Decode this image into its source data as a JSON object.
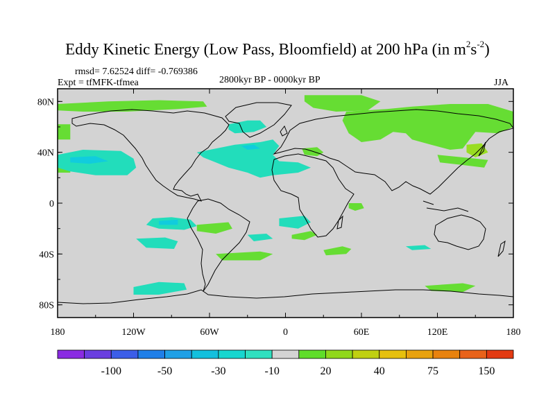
{
  "chart_data": {
    "type": "heatmap",
    "title_main": "Eddy Kinetic Energy (Low Pass, Bloomfield) at 200 hPa (in m",
    "title_sup1": "2",
    "title_s": "s",
    "title_sup2": "-2",
    "title_close": ")",
    "stats": "rmsd= 7.62524 diff= -0.769386",
    "experiment": "Expt = tfMFK-tfmea",
    "period": "2800kyr BP - 0000kyr BP",
    "season": "JJA",
    "x_axis": {
      "range": [
        -180,
        180
      ],
      "ticks": [
        -180,
        -120,
        -60,
        0,
        60,
        120,
        180
      ],
      "tick_labels": [
        "180",
        "120W",
        "60W",
        "0",
        "60E",
        "120E",
        "180"
      ]
    },
    "y_axis": {
      "range": [
        -90,
        90
      ],
      "ticks": [
        80,
        40,
        0,
        -40,
        -80
      ],
      "tick_labels": [
        "80N",
        "40N",
        "0",
        "40S",
        "80S"
      ]
    },
    "colorbar": {
      "colors": [
        "#8a2be2",
        "#6a3ee0",
        "#3c5ee8",
        "#1f7fe8",
        "#1fa0e6",
        "#13c0dd",
        "#17d6cf",
        "#30e0c0",
        "#d3d3d3",
        "#5fdd2a",
        "#90d81c",
        "#c0d012",
        "#e6c00e",
        "#e8a20e",
        "#e8820e",
        "#e8621a",
        "#e33a12"
      ],
      "labels": [
        "-100",
        "-50",
        "-30",
        "-10",
        "20",
        "40",
        "75",
        "150"
      ]
    },
    "regions": [
      {
        "category": "positive",
        "color": "#66dd33",
        "polygon": [
          [
            -180,
            78
          ],
          [
            -140,
            80
          ],
          [
            -100,
            81
          ],
          [
            -65,
            80
          ],
          [
            -62,
            76
          ],
          [
            -85,
            74
          ],
          [
            -125,
            72
          ],
          [
            -160,
            72
          ],
          [
            -180,
            73
          ]
        ]
      },
      {
        "category": "positive",
        "color": "#66dd33",
        "polygon": [
          [
            15,
            85
          ],
          [
            60,
            85
          ],
          [
            75,
            80
          ],
          [
            65,
            73
          ],
          [
            40,
            72
          ],
          [
            22,
            75
          ],
          [
            15,
            80
          ]
        ]
      },
      {
        "category": "positive",
        "color": "#66dd33",
        "polygon": [
          [
            48,
            72
          ],
          [
            80,
            74
          ],
          [
            100,
            76
          ],
          [
            130,
            78
          ],
          [
            160,
            78
          ],
          [
            180,
            72
          ],
          [
            180,
            60
          ],
          [
            168,
            55
          ],
          [
            150,
            56
          ],
          [
            140,
            43
          ],
          [
            130,
            42
          ],
          [
            115,
            46
          ],
          [
            100,
            50
          ],
          [
            95,
            55
          ],
          [
            85,
            56
          ],
          [
            75,
            50
          ],
          [
            60,
            48
          ],
          [
            50,
            55
          ],
          [
            45,
            65
          ]
        ]
      },
      {
        "category": "positive",
        "color": "#66dd33",
        "polygon": [
          [
            120,
            38
          ],
          [
            150,
            35
          ],
          [
            160,
            34
          ],
          [
            157,
            28
          ],
          [
            140,
            30
          ],
          [
            122,
            32
          ]
        ]
      },
      {
        "category": "positive",
        "color": "#66dd33",
        "polygon": [
          [
            13,
            43
          ],
          [
            25,
            44
          ],
          [
            30,
            40
          ],
          [
            25,
            37
          ],
          [
            15,
            38
          ]
        ]
      },
      {
        "category": "positive",
        "color": "#66dd33",
        "polygon": [
          [
            -180,
            62
          ],
          [
            -170,
            62
          ],
          [
            -170,
            50
          ],
          [
            -180,
            50
          ]
        ]
      },
      {
        "category": "positive",
        "color": "#66dd33",
        "polygon": [
          [
            -70,
            -17
          ],
          [
            -45,
            -15
          ],
          [
            -42,
            -20
          ],
          [
            -55,
            -24
          ],
          [
            -70,
            -22
          ]
        ]
      },
      {
        "category": "positive",
        "color": "#66dd33",
        "polygon": [
          [
            -55,
            -40
          ],
          [
            -20,
            -38
          ],
          [
            -10,
            -40
          ],
          [
            -20,
            -45
          ],
          [
            -50,
            -45
          ]
        ]
      },
      {
        "category": "positive",
        "color": "#66dd33",
        "polygon": [
          [
            5,
            -25
          ],
          [
            20,
            -22
          ],
          [
            25,
            -25
          ],
          [
            15,
            -29
          ],
          [
            5,
            -28
          ]
        ]
      },
      {
        "category": "positive",
        "color": "#66dd33",
        "polygon": [
          [
            50,
            0
          ],
          [
            60,
            0
          ],
          [
            62,
            -4
          ],
          [
            55,
            -6
          ],
          [
            50,
            -4
          ]
        ]
      },
      {
        "category": "positive",
        "color": "#66dd33",
        "polygon": [
          [
            30,
            -37
          ],
          [
            45,
            -34
          ],
          [
            52,
            -36
          ],
          [
            48,
            -40
          ],
          [
            32,
            -41
          ]
        ]
      },
      {
        "category": "positive",
        "color": "#66dd33",
        "polygon": [
          [
            110,
            -65
          ],
          [
            140,
            -63
          ],
          [
            150,
            -65
          ],
          [
            140,
            -70
          ],
          [
            115,
            -69
          ]
        ]
      },
      {
        "category": "positive",
        "color": "#66dd33",
        "polygon": [
          [
            -180,
            28
          ],
          [
            -170,
            30
          ],
          [
            -170,
            24
          ],
          [
            -180,
            24
          ]
        ]
      },
      {
        "category": "positive_strong",
        "color": "#99dd22",
        "polygon": [
          [
            143,
            46
          ],
          [
            155,
            47
          ],
          [
            160,
            40
          ],
          [
            150,
            36
          ],
          [
            143,
            40
          ]
        ]
      },
      {
        "category": "negative",
        "color": "#22ddbb",
        "polygon": [
          [
            -180,
            38
          ],
          [
            -160,
            42
          ],
          [
            -130,
            41
          ],
          [
            -120,
            35
          ],
          [
            -118,
            28
          ],
          [
            -125,
            22
          ],
          [
            -150,
            22
          ],
          [
            -170,
            25
          ],
          [
            -180,
            28
          ]
        ]
      },
      {
        "category": "negative",
        "color": "#22ddbb",
        "polygon": [
          [
            -45,
            62
          ],
          [
            -30,
            65
          ],
          [
            -20,
            65
          ],
          [
            -15,
            60
          ],
          [
            -25,
            56
          ],
          [
            -40,
            55
          ],
          [
            -45,
            58
          ]
        ]
      },
      {
        "category": "negative",
        "color": "#22ddbb",
        "polygon": [
          [
            -70,
            40
          ],
          [
            -40,
            46
          ],
          [
            -20,
            48
          ],
          [
            -10,
            50
          ],
          [
            -5,
            45
          ],
          [
            -10,
            38
          ],
          [
            -5,
            33
          ],
          [
            10,
            32
          ],
          [
            20,
            28
          ],
          [
            10,
            24
          ],
          [
            -10,
            22
          ],
          [
            -20,
            20
          ],
          [
            -30,
            24
          ],
          [
            -45,
            28
          ],
          [
            -55,
            32
          ],
          [
            -65,
            36
          ]
        ]
      },
      {
        "category": "negative",
        "color": "#22ddbb",
        "polygon": [
          [
            -105,
            -12
          ],
          [
            -90,
            -11
          ],
          [
            -75,
            -13
          ],
          [
            -70,
            -18
          ],
          [
            -80,
            -21
          ],
          [
            -100,
            -20
          ],
          [
            -110,
            -17
          ]
        ]
      },
      {
        "category": "negative",
        "color": "#22ddbb",
        "polygon": [
          [
            -118,
            -28
          ],
          [
            -95,
            -27
          ],
          [
            -85,
            -30
          ],
          [
            -88,
            -36
          ],
          [
            -110,
            -35
          ]
        ]
      },
      {
        "category": "negative",
        "color": "#22ddbb",
        "polygon": [
          [
            -5,
            -12
          ],
          [
            15,
            -10
          ],
          [
            20,
            -15
          ],
          [
            10,
            -20
          ],
          [
            -5,
            -18
          ]
        ]
      },
      {
        "category": "negative",
        "color": "#22ddbb",
        "polygon": [
          [
            -30,
            -25
          ],
          [
            -15,
            -24
          ],
          [
            -10,
            -28
          ],
          [
            -25,
            -30
          ]
        ]
      },
      {
        "category": "negative",
        "color": "#22ddbb",
        "polygon": [
          [
            -120,
            -66
          ],
          [
            -100,
            -62
          ],
          [
            -80,
            -63
          ],
          [
            -78,
            -68
          ],
          [
            -100,
            -72
          ],
          [
            -120,
            -72
          ]
        ]
      },
      {
        "category": "negative",
        "color": "#22ddbb",
        "polygon": [
          [
            95,
            -34
          ],
          [
            110,
            -33
          ],
          [
            115,
            -36
          ],
          [
            100,
            -37
          ]
        ]
      },
      {
        "category": "negative_strong",
        "color": "#11ccdd",
        "polygon": [
          [
            -170,
            36
          ],
          [
            -150,
            37
          ],
          [
            -140,
            33
          ],
          [
            -155,
            31
          ],
          [
            -170,
            32
          ]
        ]
      },
      {
        "category": "negative_strong",
        "color": "#11ccdd",
        "polygon": [
          [
            -35,
            45
          ],
          [
            -25,
            46
          ],
          [
            -20,
            43
          ],
          [
            -30,
            42
          ]
        ]
      },
      {
        "category": "negative_strong",
        "color": "#11ccdd",
        "polygon": [
          [
            -100,
            -14
          ],
          [
            -85,
            -13
          ],
          [
            -85,
            -17
          ],
          [
            -100,
            -17
          ]
        ]
      }
    ]
  }
}
